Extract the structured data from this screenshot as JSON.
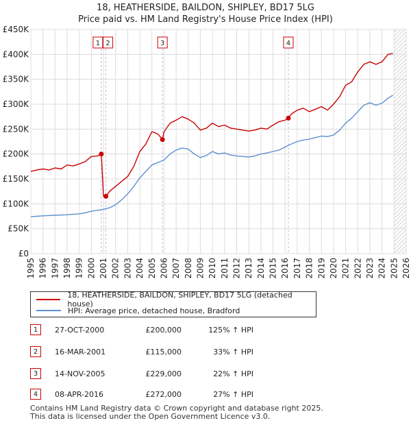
{
  "chart_data": {
    "type": "line",
    "title": "18, HEATHERSIDE, BAILDON, SHIPLEY, BD17 5LG",
    "subtitle": "Price paid vs. HM Land Registry's House Price Index (HPI)",
    "xlabel": "",
    "ylabel": "",
    "xlim": [
      1995,
      2026
    ],
    "ylim": [
      0,
      450000
    ],
    "y_ticks": [
      0,
      50000,
      100000,
      150000,
      200000,
      250000,
      300000,
      350000,
      400000,
      450000
    ],
    "y_tick_labels": [
      "£0",
      "£50K",
      "£100K",
      "£150K",
      "£200K",
      "£250K",
      "£300K",
      "£350K",
      "£400K",
      "£450K"
    ],
    "x_ticks": [
      1995,
      1996,
      1997,
      1998,
      1999,
      2000,
      2001,
      2002,
      2003,
      2004,
      2005,
      2006,
      2007,
      2008,
      2009,
      2010,
      2011,
      2012,
      2013,
      2014,
      2015,
      2016,
      2017,
      2018,
      2019,
      2020,
      2021,
      2022,
      2023,
      2024,
      2025,
      2026
    ],
    "x_tick_labels": [
      "1995",
      "1996",
      "1997",
      "1998",
      "1999",
      "2000",
      "2001",
      "2002",
      "2003",
      "2004",
      "2005",
      "2006",
      "2007",
      "2008",
      "2009",
      "2010",
      "2011",
      "2012",
      "2013",
      "2014",
      "2015",
      "2016",
      "2017",
      "2018",
      "2019",
      "2020",
      "2021",
      "2022",
      "2023",
      "2024",
      "2025",
      "2026"
    ],
    "grid": true,
    "hatched_after": 2025.0,
    "series": [
      {
        "name": "18, HEATHERSIDE, BAILDON, SHIPLEY, BD17 5LG (detached house)",
        "color": "#cc0000",
        "x": [
          1995.0,
          1995.5,
          1996.0,
          1996.5,
          1997.0,
          1997.5,
          1998.0,
          1998.5,
          1999.0,
          1999.5,
          2000.0,
          2000.5,
          2000.82,
          2001.0,
          2001.2,
          2001.5,
          2002.0,
          2002.5,
          2003.0,
          2003.5,
          2004.0,
          2004.5,
          2005.0,
          2005.5,
          2005.87,
          2006.0,
          2006.5,
          2007.0,
          2007.5,
          2008.0,
          2008.5,
          2009.0,
          2009.5,
          2010.0,
          2010.5,
          2011.0,
          2011.5,
          2012.0,
          2012.5,
          2013.0,
          2013.5,
          2014.0,
          2014.5,
          2015.0,
          2015.5,
          2016.0,
          2016.27,
          2016.5,
          2017.0,
          2017.5,
          2018.0,
          2018.5,
          2019.0,
          2019.5,
          2020.0,
          2020.5,
          2021.0,
          2021.5,
          2022.0,
          2022.5,
          2023.0,
          2023.5,
          2024.0,
          2024.5,
          2024.9
        ],
        "values": [
          165000,
          168000,
          170000,
          168000,
          172000,
          170000,
          178000,
          176000,
          180000,
          185000,
          195000,
          196000,
          200000,
          115000,
          115000,
          125000,
          135000,
          145000,
          155000,
          175000,
          205000,
          220000,
          245000,
          240000,
          229000,
          245000,
          262000,
          268000,
          275000,
          270000,
          262000,
          248000,
          252000,
          262000,
          255000,
          258000,
          252000,
          250000,
          248000,
          246000,
          248000,
          252000,
          250000,
          258000,
          265000,
          268000,
          272000,
          280000,
          288000,
          292000,
          285000,
          290000,
          295000,
          288000,
          300000,
          315000,
          338000,
          345000,
          365000,
          380000,
          385000,
          380000,
          385000,
          400000,
          402000
        ]
      },
      {
        "name": "HPI: Average price, detached house, Bradford",
        "color": "#5b8fd0",
        "x": [
          1995.0,
          1995.5,
          1996.0,
          1996.5,
          1997.0,
          1997.5,
          1998.0,
          1998.5,
          1999.0,
          1999.5,
          2000.0,
          2000.5,
          2001.0,
          2001.5,
          2002.0,
          2002.5,
          2003.0,
          2003.5,
          2004.0,
          2004.5,
          2005.0,
          2005.5,
          2006.0,
          2006.5,
          2007.0,
          2007.5,
          2008.0,
          2008.5,
          2009.0,
          2009.5,
          2010.0,
          2010.5,
          2011.0,
          2011.5,
          2012.0,
          2012.5,
          2013.0,
          2013.5,
          2014.0,
          2014.5,
          2015.0,
          2015.5,
          2016.0,
          2016.5,
          2017.0,
          2017.5,
          2018.0,
          2018.5,
          2019.0,
          2019.5,
          2020.0,
          2020.5,
          2021.0,
          2021.5,
          2022.0,
          2022.5,
          2023.0,
          2023.5,
          2024.0,
          2024.5,
          2024.9
        ],
        "values": [
          74000,
          75000,
          76000,
          76500,
          77000,
          77500,
          78000,
          79000,
          80000,
          82000,
          85000,
          87000,
          89000,
          92000,
          98000,
          108000,
          120000,
          135000,
          152000,
          165000,
          178000,
          183000,
          188000,
          200000,
          208000,
          212000,
          210000,
          200000,
          193000,
          197000,
          205000,
          200000,
          202000,
          198000,
          196000,
          195000,
          194000,
          196000,
          200000,
          202000,
          205000,
          208000,
          214000,
          220000,
          225000,
          228000,
          230000,
          233000,
          236000,
          235000,
          238000,
          248000,
          262000,
          272000,
          285000,
          298000,
          303000,
          298000,
          302000,
          312000,
          318000
        ]
      }
    ],
    "markers": [
      {
        "label": "1",
        "x": 2000.82,
        "value": 200000
      },
      {
        "label": "2",
        "x": 2001.2,
        "value": 115000
      },
      {
        "label": "3",
        "x": 2005.87,
        "value": 229000
      },
      {
        "label": "4",
        "x": 2016.27,
        "value": 272000
      }
    ]
  },
  "legend": {
    "items": [
      {
        "label": "18, HEATHERSIDE, BAILDON, SHIPLEY, BD17 5LG (detached house)",
        "color": "#cc0000"
      },
      {
        "label": "HPI: Average price, detached house, Bradford",
        "color": "#5b8fd0"
      }
    ]
  },
  "sales": [
    {
      "num": "1",
      "date": "27-OCT-2000",
      "price": "£200,000",
      "hpi": "125% ↑ HPI"
    },
    {
      "num": "2",
      "date": "16-MAR-2001",
      "price": "£115,000",
      "hpi": "33% ↑ HPI"
    },
    {
      "num": "3",
      "date": "14-NOV-2005",
      "price": "£229,000",
      "hpi": "22% ↑ HPI"
    },
    {
      "num": "4",
      "date": "08-APR-2016",
      "price": "£272,000",
      "hpi": "27% ↑ HPI"
    }
  ],
  "footer": {
    "line1": "Contains HM Land Registry data © Crown copyright and database right 2025.",
    "line2": "This data is licensed under the Open Government Licence v3.0."
  }
}
